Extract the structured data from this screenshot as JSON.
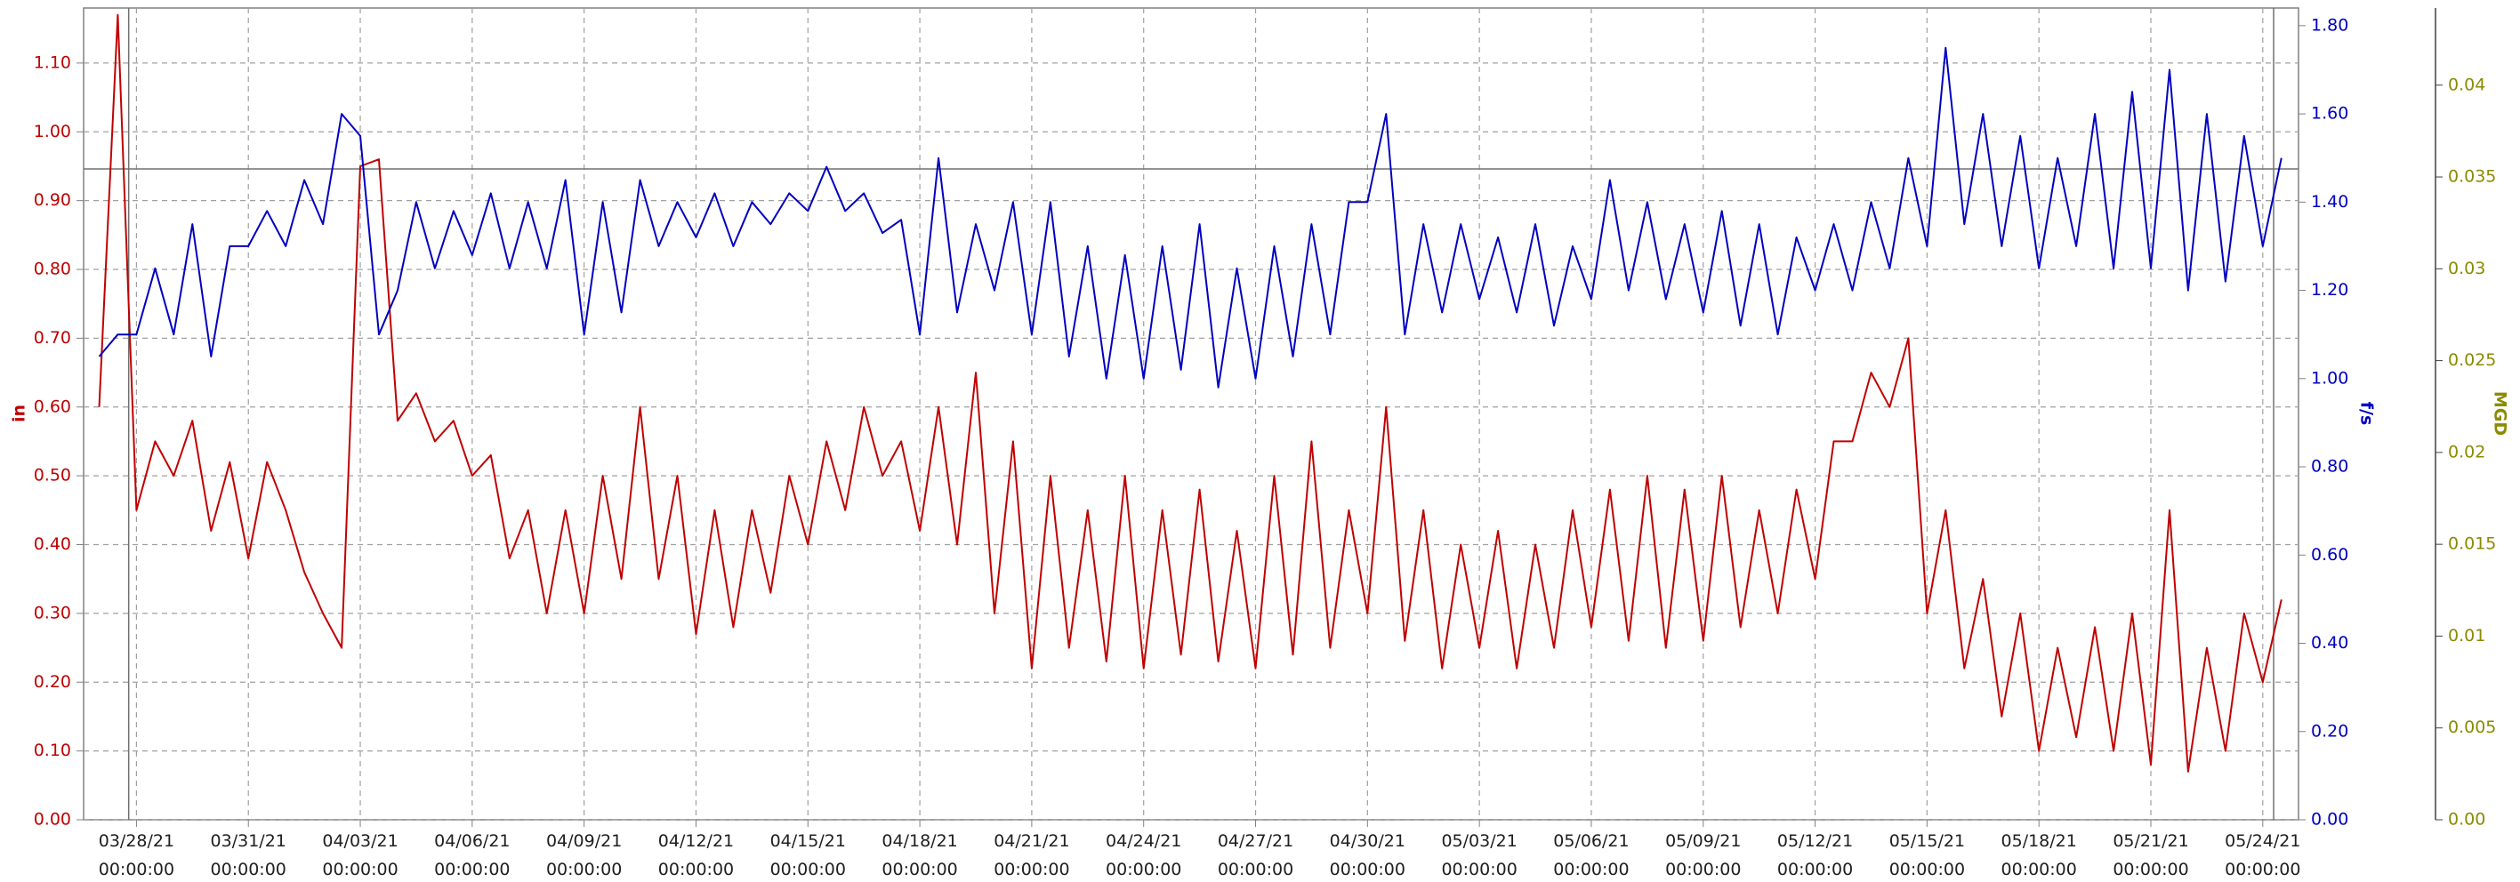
{
  "chart_data": {
    "type": "line",
    "ylabel": "in",
    "y2label": "f/s",
    "y3label": "MGD",
    "xlim": [
      "03/26/21 14:00:00",
      "05/24/21 23:00:00"
    ],
    "xticks": [
      "03/28/21 00:00:00",
      "03/31/21 00:00:00",
      "04/03/21 00:00:00",
      "04/06/21 00:00:00",
      "04/09/21 00:00:00",
      "04/12/21 00:00:00",
      "04/15/21 00:00:00",
      "04/18/21 00:00:00",
      "04/21/21 00:00:00",
      "04/24/21 00:00:00",
      "04/27/21 00:00:00",
      "04/30/21 00:00:00",
      "05/03/21 00:00:00",
      "05/06/21 00:00:00",
      "05/09/21 00:00:00",
      "05/12/21 00:00:00",
      "05/15/21 00:00:00",
      "05/18/21 00:00:00",
      "05/21/21 00:00:00",
      "05/24/21 00:00:00"
    ],
    "ylim": [
      0,
      1.18
    ],
    "yticks": [
      {
        "value": 0,
        "label": "0.00"
      },
      {
        "value": 0.1,
        "label": "0.10"
      },
      {
        "value": 0.2,
        "label": "0.20"
      },
      {
        "value": 0.3,
        "label": "0.30"
      },
      {
        "value": 0.4,
        "label": "0.40"
      },
      {
        "value": 0.5,
        "label": "0.50"
      },
      {
        "value": 0.6,
        "label": "0.60"
      },
      {
        "value": 0.7,
        "label": "0.70"
      },
      {
        "value": 0.8,
        "label": "0.80"
      },
      {
        "value": 0.9,
        "label": "0.90"
      },
      {
        "value": 1.0,
        "label": "1.00"
      },
      {
        "value": 1.1,
        "label": "1.10"
      }
    ],
    "y2lim": [
      0,
      1.84
    ],
    "y2ticks": [
      {
        "value": 0,
        "label": "0.00"
      },
      {
        "value": 0.2,
        "label": "0.20"
      },
      {
        "value": 0.4,
        "label": "0.40"
      },
      {
        "value": 0.6,
        "label": "0.60"
      },
      {
        "value": 0.8,
        "label": "0.80"
      },
      {
        "value": 1.0,
        "label": "1.00"
      },
      {
        "value": 1.2,
        "label": "1.20"
      },
      {
        "value": 1.4,
        "label": "1.40"
      },
      {
        "value": 1.6,
        "label": "1.60"
      },
      {
        "value": 1.8,
        "label": "1.80"
      }
    ],
    "y3lim": [
      0,
      0.0442
    ],
    "y3ticks": [
      {
        "value": 0,
        "label": "0.00"
      },
      0.005,
      0.01,
      0.015,
      0.02,
      0.025,
      0.03,
      0.035,
      0.04
    ],
    "grid": true,
    "hlines": [
      0.946
    ],
    "vlines": [
      "03/27/21 19:00:00",
      "05/24/21 07:00:00"
    ],
    "x": [
      "03/27/21 00:00:00",
      "03/27/21 12:00:00",
      "03/28/21 00:00:00",
      "03/28/21 12:00:00",
      "03/29/21 00:00:00",
      "03/29/21 12:00:00",
      "03/30/21 00:00:00",
      "03/30/21 12:00:00",
      "03/31/21 00:00:00",
      "03/31/21 12:00:00",
      "04/01/21 00:00:00",
      "04/01/21 12:00:00",
      "04/02/21 00:00:00",
      "04/02/21 12:00:00",
      "04/03/21 00:00:00",
      "04/03/21 12:00:00",
      "04/04/21 00:00:00",
      "04/04/21 12:00:00",
      "04/05/21 00:00:00",
      "04/05/21 12:00:00",
      "04/06/21 00:00:00",
      "04/06/21 12:00:00",
      "04/07/21 00:00:00",
      "04/07/21 12:00:00",
      "04/08/21 00:00:00",
      "04/08/21 12:00:00",
      "04/09/21 00:00:00",
      "04/09/21 12:00:00",
      "04/10/21 00:00:00",
      "04/10/21 12:00:00",
      "04/11/21 00:00:00",
      "04/11/21 12:00:00",
      "04/12/21 00:00:00",
      "04/12/21 12:00:00",
      "04/13/21 00:00:00",
      "04/13/21 12:00:00",
      "04/14/21 00:00:00",
      "04/14/21 12:00:00",
      "04/15/21 00:00:00",
      "04/15/21 12:00:00",
      "04/16/21 00:00:00",
      "04/16/21 12:00:00",
      "04/17/21 00:00:00",
      "04/17/21 12:00:00",
      "04/18/21 00:00:00",
      "04/18/21 12:00:00",
      "04/19/21 00:00:00",
      "04/19/21 12:00:00",
      "04/20/21 00:00:00",
      "04/20/21 12:00:00",
      "04/21/21 00:00:00",
      "04/21/21 12:00:00",
      "04/22/21 00:00:00",
      "04/22/21 12:00:00",
      "04/23/21 00:00:00",
      "04/23/21 12:00:00",
      "04/24/21 00:00:00",
      "04/24/21 12:00:00",
      "04/25/21 00:00:00",
      "04/25/21 12:00:00",
      "04/26/21 00:00:00",
      "04/26/21 12:00:00",
      "04/27/21 00:00:00",
      "04/27/21 12:00:00",
      "04/28/21 00:00:00",
      "04/28/21 12:00:00",
      "04/29/21 00:00:00",
      "04/29/21 12:00:00",
      "04/30/21 00:00:00",
      "04/30/21 12:00:00",
      "05/01/21 00:00:00",
      "05/01/21 12:00:00",
      "05/02/21 00:00:00",
      "05/02/21 12:00:00",
      "05/03/21 00:00:00",
      "05/03/21 12:00:00",
      "05/04/21 00:00:00",
      "05/04/21 12:00:00",
      "05/05/21 00:00:00",
      "05/05/21 12:00:00",
      "05/06/21 00:00:00",
      "05/06/21 12:00:00",
      "05/07/21 00:00:00",
      "05/07/21 12:00:00",
      "05/08/21 00:00:00",
      "05/08/21 12:00:00",
      "05/09/21 00:00:00",
      "05/09/21 12:00:00",
      "05/10/21 00:00:00",
      "05/10/21 12:00:00",
      "05/11/21 00:00:00",
      "05/11/21 12:00:00",
      "05/12/21 00:00:00",
      "05/12/21 12:00:00",
      "05/13/21 00:00:00",
      "05/13/21 12:00:00",
      "05/14/21 00:00:00",
      "05/14/21 12:00:00",
      "05/15/21 00:00:00",
      "05/15/21 12:00:00",
      "05/16/21 00:00:00",
      "05/16/21 12:00:00",
      "05/17/21 00:00:00",
      "05/17/21 12:00:00",
      "05/18/21 00:00:00",
      "05/18/21 12:00:00",
      "05/19/21 00:00:00",
      "05/19/21 12:00:00",
      "05/20/21 00:00:00",
      "05/20/21 12:00:00",
      "05/21/21 00:00:00",
      "05/21/21 12:00:00",
      "05/22/21 00:00:00",
      "05/22/21 12:00:00",
      "05/23/21 00:00:00",
      "05/23/21 12:00:00",
      "05/24/21 00:00:00",
      "05/24/21 12:00:00"
    ],
    "series": [
      {
        "name": "in",
        "color": "#c00000",
        "values": [
          0.6,
          1.17,
          0.45,
          0.55,
          0.5,
          0.58,
          0.42,
          0.52,
          0.38,
          0.52,
          0.45,
          0.36,
          0.3,
          0.25,
          0.95,
          0.96,
          0.58,
          0.62,
          0.55,
          0.58,
          0.5,
          0.53,
          0.38,
          0.45,
          0.3,
          0.45,
          0.3,
          0.5,
          0.35,
          0.6,
          0.35,
          0.5,
          0.27,
          0.45,
          0.28,
          0.45,
          0.33,
          0.5,
          0.4,
          0.55,
          0.45,
          0.6,
          0.5,
          0.55,
          0.42,
          0.6,
          0.4,
          0.65,
          0.3,
          0.55,
          0.22,
          0.5,
          0.25,
          0.45,
          0.23,
          0.5,
          0.22,
          0.45,
          0.24,
          0.48,
          0.23,
          0.42,
          0.22,
          0.5,
          0.24,
          0.55,
          0.25,
          0.45,
          0.3,
          0.6,
          0.26,
          0.45,
          0.22,
          0.4,
          0.25,
          0.42,
          0.22,
          0.4,
          0.25,
          0.45,
          0.28,
          0.48,
          0.26,
          0.5,
          0.25,
          0.48,
          0.26,
          0.5,
          0.28,
          0.45,
          0.3,
          0.48,
          0.35,
          0.55,
          0.55,
          0.65,
          0.6,
          0.7,
          0.3,
          0.45,
          0.22,
          0.35,
          0.15,
          0.3,
          0.1,
          0.25,
          0.12,
          0.28,
          0.1,
          0.3,
          0.08,
          0.45,
          0.07,
          0.25,
          0.1,
          0.3,
          0.2,
          0.32
        ]
      },
      {
        "name": "f/s",
        "color": "#0000c0",
        "axis": "y2",
        "values": [
          1.05,
          1.1,
          1.1,
          1.25,
          1.1,
          1.35,
          1.05,
          1.3,
          1.3,
          1.38,
          1.3,
          1.45,
          1.35,
          1.6,
          1.55,
          1.1,
          1.2,
          1.4,
          1.25,
          1.38,
          1.28,
          1.42,
          1.25,
          1.4,
          1.25,
          1.45,
          1.1,
          1.4,
          1.15,
          1.45,
          1.3,
          1.4,
          1.32,
          1.42,
          1.3,
          1.4,
          1.35,
          1.42,
          1.38,
          1.48,
          1.38,
          1.42,
          1.33,
          1.36,
          1.1,
          1.5,
          1.15,
          1.35,
          1.2,
          1.4,
          1.1,
          1.4,
          1.05,
          1.3,
          1.0,
          1.28,
          1.0,
          1.3,
          1.02,
          1.35,
          0.98,
          1.25,
          1.0,
          1.3,
          1.05,
          1.35,
          1.1,
          1.4,
          1.4,
          1.6,
          1.1,
          1.35,
          1.15,
          1.35,
          1.18,
          1.32,
          1.15,
          1.35,
          1.12,
          1.3,
          1.18,
          1.45,
          1.2,
          1.4,
          1.18,
          1.35,
          1.15,
          1.38,
          1.12,
          1.35,
          1.1,
          1.32,
          1.2,
          1.35,
          1.2,
          1.4,
          1.25,
          1.5,
          1.3,
          1.75,
          1.35,
          1.6,
          1.3,
          1.55,
          1.25,
          1.5,
          1.3,
          1.6,
          1.25,
          1.65,
          1.25,
          1.7,
          1.2,
          1.6,
          1.22,
          1.55,
          1.3,
          1.5
        ]
      }
    ]
  }
}
